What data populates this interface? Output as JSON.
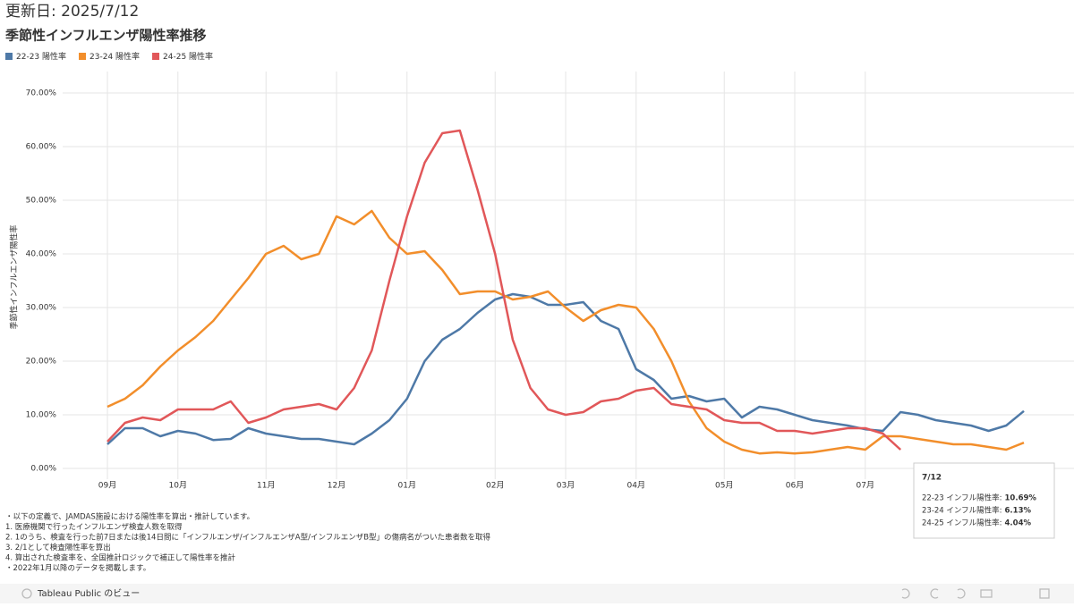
{
  "header": {
    "updated": "更新日: 2025/7/12"
  },
  "chart_data": {
    "type": "line",
    "title": "季節性インフルエンザ陽性率推移",
    "y_label": "季節性インフルエンザ陽性率",
    "categories": [
      "09月",
      null,
      null,
      null,
      "10月",
      null,
      null,
      null,
      null,
      "11月",
      null,
      null,
      null,
      "12月",
      null,
      null,
      null,
      "01月",
      null,
      null,
      null,
      null,
      "02月",
      null,
      null,
      null,
      "03月",
      null,
      null,
      null,
      "04月",
      null,
      null,
      null,
      null,
      "05月",
      null,
      null,
      null,
      "06月",
      null,
      null,
      null,
      "07月",
      null,
      null,
      null,
      null,
      null,
      null,
      null,
      null,
      null
    ],
    "ylim": [
      -1,
      72
    ],
    "yticks": [
      {
        "value": 0,
        "label": "0.00%"
      },
      {
        "value": 10,
        "label": "10.00%"
      },
      {
        "value": 20,
        "label": "20.00%"
      },
      {
        "value": 30,
        "label": "30.00%"
      },
      {
        "value": 40,
        "label": "40.00%"
      },
      {
        "value": 50,
        "label": "50.00%"
      },
      {
        "value": 60,
        "label": "60.00%"
      },
      {
        "value": 70,
        "label": "70.00%"
      }
    ],
    "grid": true,
    "legend": "top-left",
    "series": [
      {
        "name": "22-23 陽性率",
        "color": "#4e79a7",
        "values": [
          4.5,
          7.5,
          7.5,
          6,
          7,
          6.5,
          5.3,
          5.5,
          7.5,
          6.5,
          6,
          5.5,
          5.5,
          5,
          4.5,
          6.5,
          9,
          13,
          20,
          24,
          26,
          29,
          31.5,
          32.5,
          32,
          30.5,
          30.5,
          31,
          27.5,
          26,
          18.5,
          16.5,
          13,
          13.5,
          12.5,
          13,
          9.5,
          11.5,
          11,
          10,
          9,
          8.5,
          8,
          7.3,
          7,
          10.5,
          10,
          9,
          8.5,
          8,
          7,
          8,
          10.7
        ]
      },
      {
        "name": "23-24 陽性率",
        "color": "#f28e2b",
        "values": [
          11.5,
          13,
          15.5,
          19,
          22,
          24.5,
          27.5,
          31.5,
          35.5,
          40,
          41.5,
          39,
          40,
          47,
          45.5,
          48,
          43,
          40,
          40.5,
          37,
          32.5,
          33,
          33,
          31.5,
          32,
          33,
          30,
          27.5,
          29.5,
          30.5,
          30,
          26,
          20,
          12.5,
          7.5,
          5,
          3.5,
          2.8,
          3,
          2.8,
          3,
          3.5,
          4,
          3.5,
          6,
          6,
          5.5,
          5,
          4.5,
          4.5,
          4,
          3.5,
          4.8
        ]
      },
      {
        "name": "24-25 陽性率",
        "color": "#e15759",
        "values": [
          5,
          8.5,
          9.5,
          9,
          11,
          11,
          11,
          12.5,
          8.5,
          9.5,
          11,
          11.5,
          12,
          11,
          15,
          22,
          35,
          47,
          57,
          62.5,
          63,
          52,
          40,
          24,
          15,
          11,
          10,
          10.5,
          12.5,
          13,
          14.5,
          15,
          12,
          11.5,
          11,
          9,
          8.5,
          8.5,
          7,
          7,
          6.5,
          7,
          7.5,
          7.5,
          6.5,
          3.5,
          null,
          null,
          null,
          null,
          null,
          null,
          null
        ]
      }
    ]
  },
  "tooltip": {
    "title": "7/12",
    "rows": [
      {
        "label": "22-23 インフル陽性率:",
        "value": "10.69%"
      },
      {
        "label": "23-24 インフル陽性率:",
        "value": "6.13%"
      },
      {
        "label": "24-25 インフル陽性率:",
        "value": "4.04%"
      }
    ]
  },
  "notes": [
    "・以下の定義で、JAMDAS施設における陽性率を算出・推計しています。",
    "1. 医療機関で行ったインフルエンザ検査人数を取得",
    "2. 1のうち、検査を行った前7日または後14日間に「インフルエンザ/インフルエンザA型/インフルエンザB型」の傷病名がついた患者数を取得",
    "3. 2/1として検査陽性率を算出",
    "4. 算出された検査率を、全国推計ロジックで補正して陽性率を推計",
    "・2022年1月以降のデータを掲載します。"
  ],
  "footer": {
    "label": "Tableau Public のビュー"
  }
}
